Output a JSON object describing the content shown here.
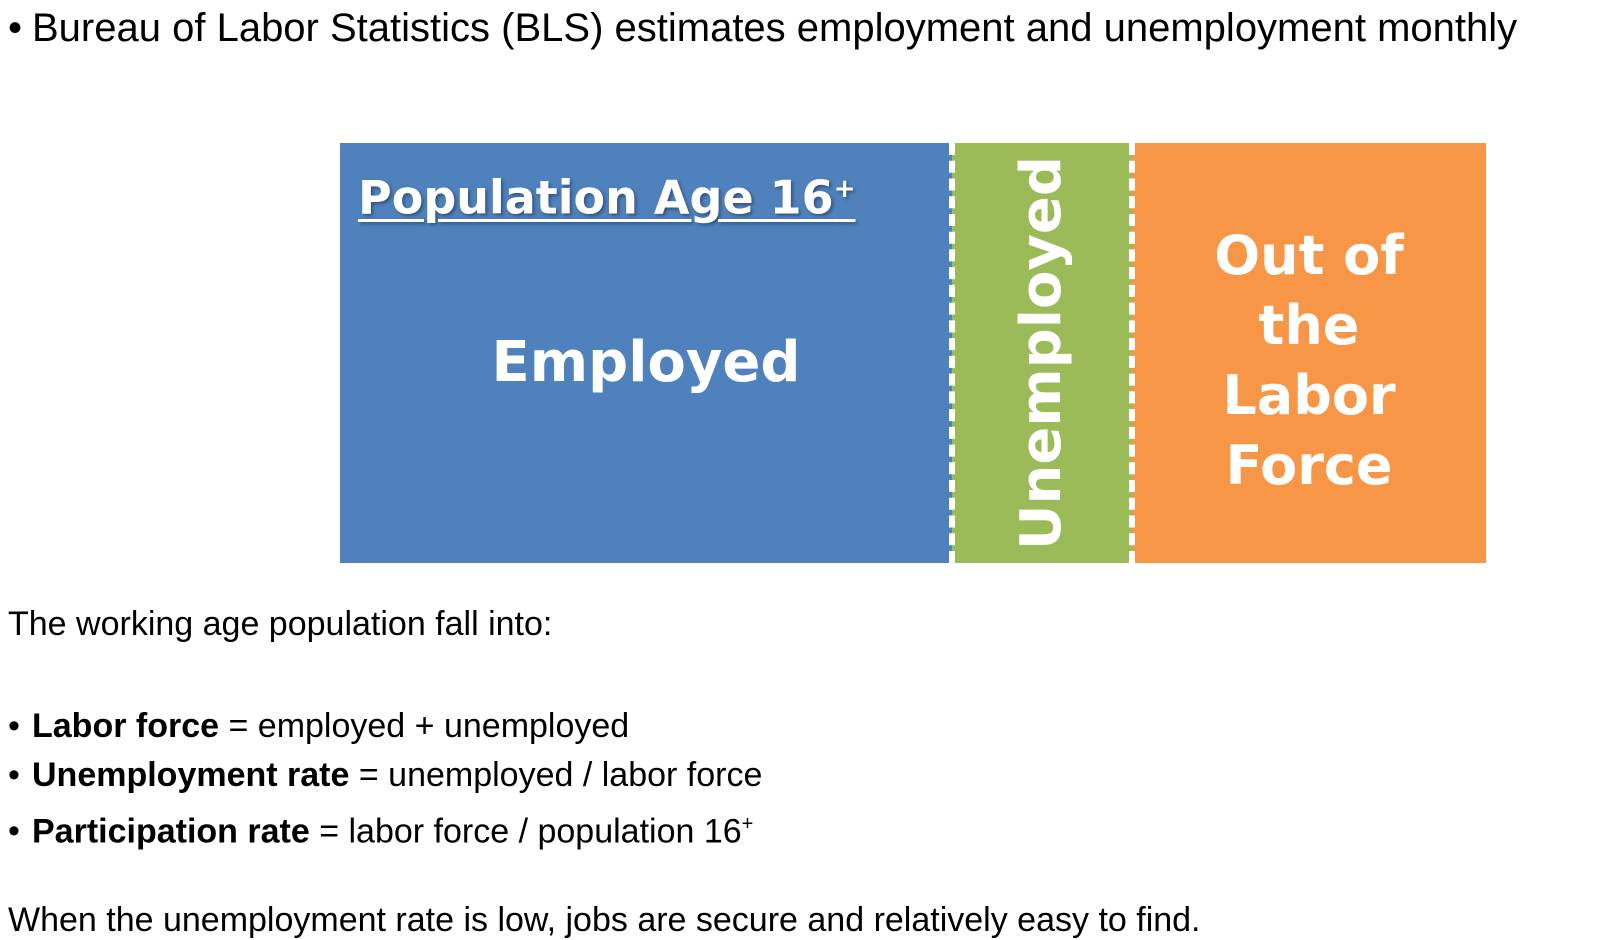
{
  "top_bullet": {
    "marker": "•",
    "text": "Bureau of Labor Statistics (BLS) estimates employment and unemployment monthly"
  },
  "diagram": {
    "title": "Population Age 16",
    "title_superscript": "+",
    "blocks": [
      {
        "label": "Employed",
        "color": "#4F81BD"
      },
      {
        "label": "Unemployed",
        "color": "#9BBB59"
      },
      {
        "label_lines": [
          "Out of",
          "the",
          "Labor",
          "Force"
        ],
        "color": "#F79646"
      }
    ]
  },
  "intro": "The working age population fall into:",
  "definitions": [
    {
      "marker": "•",
      "term": "Labor force",
      "definition": " = employed + unemployed",
      "suffix_sup": ""
    },
    {
      "marker": "•",
      "term": "Unemployment rate",
      "definition": " = unemployed / labor force",
      "suffix_sup": ""
    },
    {
      "marker": "•",
      "term": "Participation rate",
      "definition": " = labor force / population 16",
      "suffix_sup": "+"
    }
  ],
  "closing": "When the unemployment rate is low, jobs are secure and relatively easy to find."
}
